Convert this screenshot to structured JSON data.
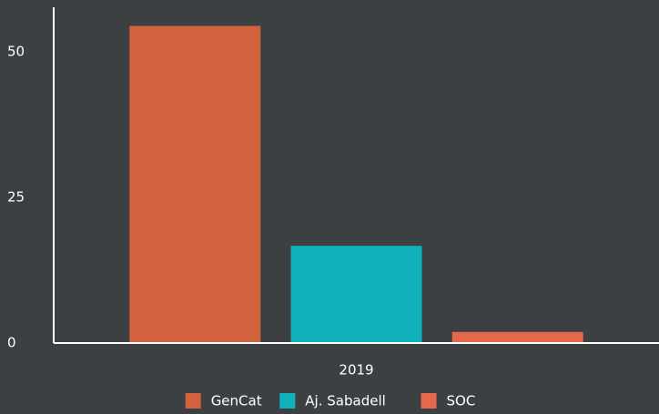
{
  "chart_data": {
    "type": "bar",
    "categories": [
      "2019"
    ],
    "series": [
      {
        "name": "GenCat",
        "color": "#d2613e",
        "values": [
          54.5
        ]
      },
      {
        "name": "Aj. Sabadell",
        "color": "#11b2bc",
        "values": [
          16.7
        ]
      },
      {
        "name": "SOC",
        "color": "#e6684a",
        "values": [
          1.9
        ]
      }
    ],
    "ylim": [
      0,
      57.7
    ],
    "yticks": [
      0,
      25,
      50
    ],
    "grid": false,
    "legend": "bottom"
  }
}
